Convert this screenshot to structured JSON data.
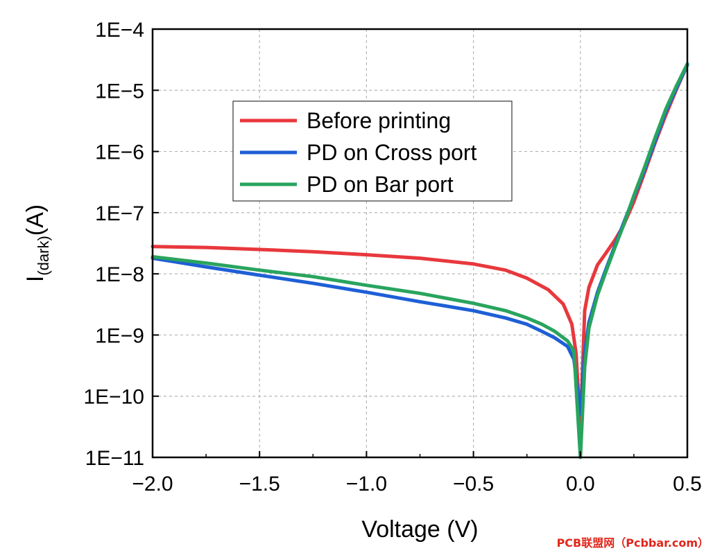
{
  "chart_data": {
    "type": "line",
    "title": "",
    "xlabel": "Voltage (V)",
    "ylabel_main": "I",
    "ylabel_sub": "(dark)",
    "ylabel_unit": "(A)",
    "yscale": "log",
    "xlim": [
      -2.0,
      0.5
    ],
    "ylim": [
      1e-11,
      0.0001
    ],
    "x_ticks": [
      -2.0,
      -1.5,
      -1.0,
      -0.5,
      0.0,
      0.5
    ],
    "x_tick_labels": [
      "−2.0",
      "−1.5",
      "−1.0",
      "−0.5",
      "0.0",
      "0.5"
    ],
    "y_ticks": [
      1e-11,
      1e-10,
      1e-09,
      1e-08,
      1e-07,
      1e-06,
      1e-05,
      0.0001
    ],
    "y_tick_labels": [
      "1E−11",
      "1E−10",
      "1E−9",
      "1E−8",
      "1E−7",
      "1E−6",
      "1E−5",
      "1E−4"
    ],
    "grid": true,
    "legend_position": "upper-middle",
    "series": [
      {
        "name": "Before printing",
        "color": "#e8383d",
        "x": [
          -2.0,
          -1.75,
          -1.5,
          -1.25,
          -1.0,
          -0.75,
          -0.5,
          -0.35,
          -0.25,
          -0.15,
          -0.08,
          -0.04,
          -0.02,
          0.0,
          0.02,
          0.04,
          0.08,
          0.12,
          0.16,
          0.2,
          0.25,
          0.3,
          0.35,
          0.4,
          0.45,
          0.5
        ],
        "y": [
          2.8e-08,
          2.7e-08,
          2.5e-08,
          2.3e-08,
          2.05e-08,
          1.8e-08,
          1.45e-08,
          1.15e-08,
          8.5e-09,
          5.5e-09,
          3.2e-09,
          1.5e-09,
          5e-10,
          3e-11,
          2.5e-09,
          6e-09,
          1.4e-08,
          2.2e-08,
          3.5e-08,
          6e-08,
          1.5e-07,
          4.5e-07,
          1.4e-06,
          4e-06,
          1.05e-05,
          2.6e-05
        ]
      },
      {
        "name": "PD on Cross port",
        "color": "#1e5fd6",
        "x": [
          -2.0,
          -1.75,
          -1.5,
          -1.25,
          -1.0,
          -0.75,
          -0.5,
          -0.35,
          -0.25,
          -0.18,
          -0.12,
          -0.06,
          -0.03,
          0.0,
          0.02,
          0.04,
          0.08,
          0.12,
          0.16,
          0.2,
          0.25,
          0.3,
          0.35,
          0.4,
          0.45,
          0.5
        ],
        "y": [
          1.8e-08,
          1.3e-08,
          9.5e-09,
          7e-09,
          5e-09,
          3.5e-09,
          2.5e-09,
          1.9e-09,
          1.5e-09,
          1.15e-09,
          9e-10,
          6.5e-10,
          4e-10,
          5e-11,
          5e-10,
          1.6e-09,
          5e-09,
          1.2e-08,
          2.8e-08,
          6.5e-08,
          1.8e-07,
          5e-07,
          1.5e-06,
          4.5e-06,
          1.1e-05,
          2.6e-05
        ]
      },
      {
        "name": "PD on Bar port",
        "color": "#29a45e",
        "x": [
          -2.0,
          -1.75,
          -1.5,
          -1.25,
          -1.0,
          -0.75,
          -0.5,
          -0.35,
          -0.25,
          -0.18,
          -0.12,
          -0.06,
          -0.03,
          0.0,
          0.02,
          0.04,
          0.08,
          0.12,
          0.16,
          0.2,
          0.25,
          0.3,
          0.35,
          0.4,
          0.45,
          0.5
        ],
        "y": [
          1.9e-08,
          1.5e-08,
          1.15e-08,
          9e-09,
          6.5e-09,
          4.8e-09,
          3.3e-09,
          2.5e-09,
          1.9e-09,
          1.5e-09,
          1.15e-09,
          8e-10,
          5.5e-10,
          1e-11,
          3e-10,
          1.3e-09,
          4.5e-09,
          1.1e-08,
          2.6e-08,
          6e-08,
          1.9e-07,
          5.5e-07,
          1.7e-06,
          5e-06,
          1.2e-05,
          2.7e-05
        ]
      }
    ]
  },
  "watermark": "PCB联盟网（Pcbbar.com）"
}
